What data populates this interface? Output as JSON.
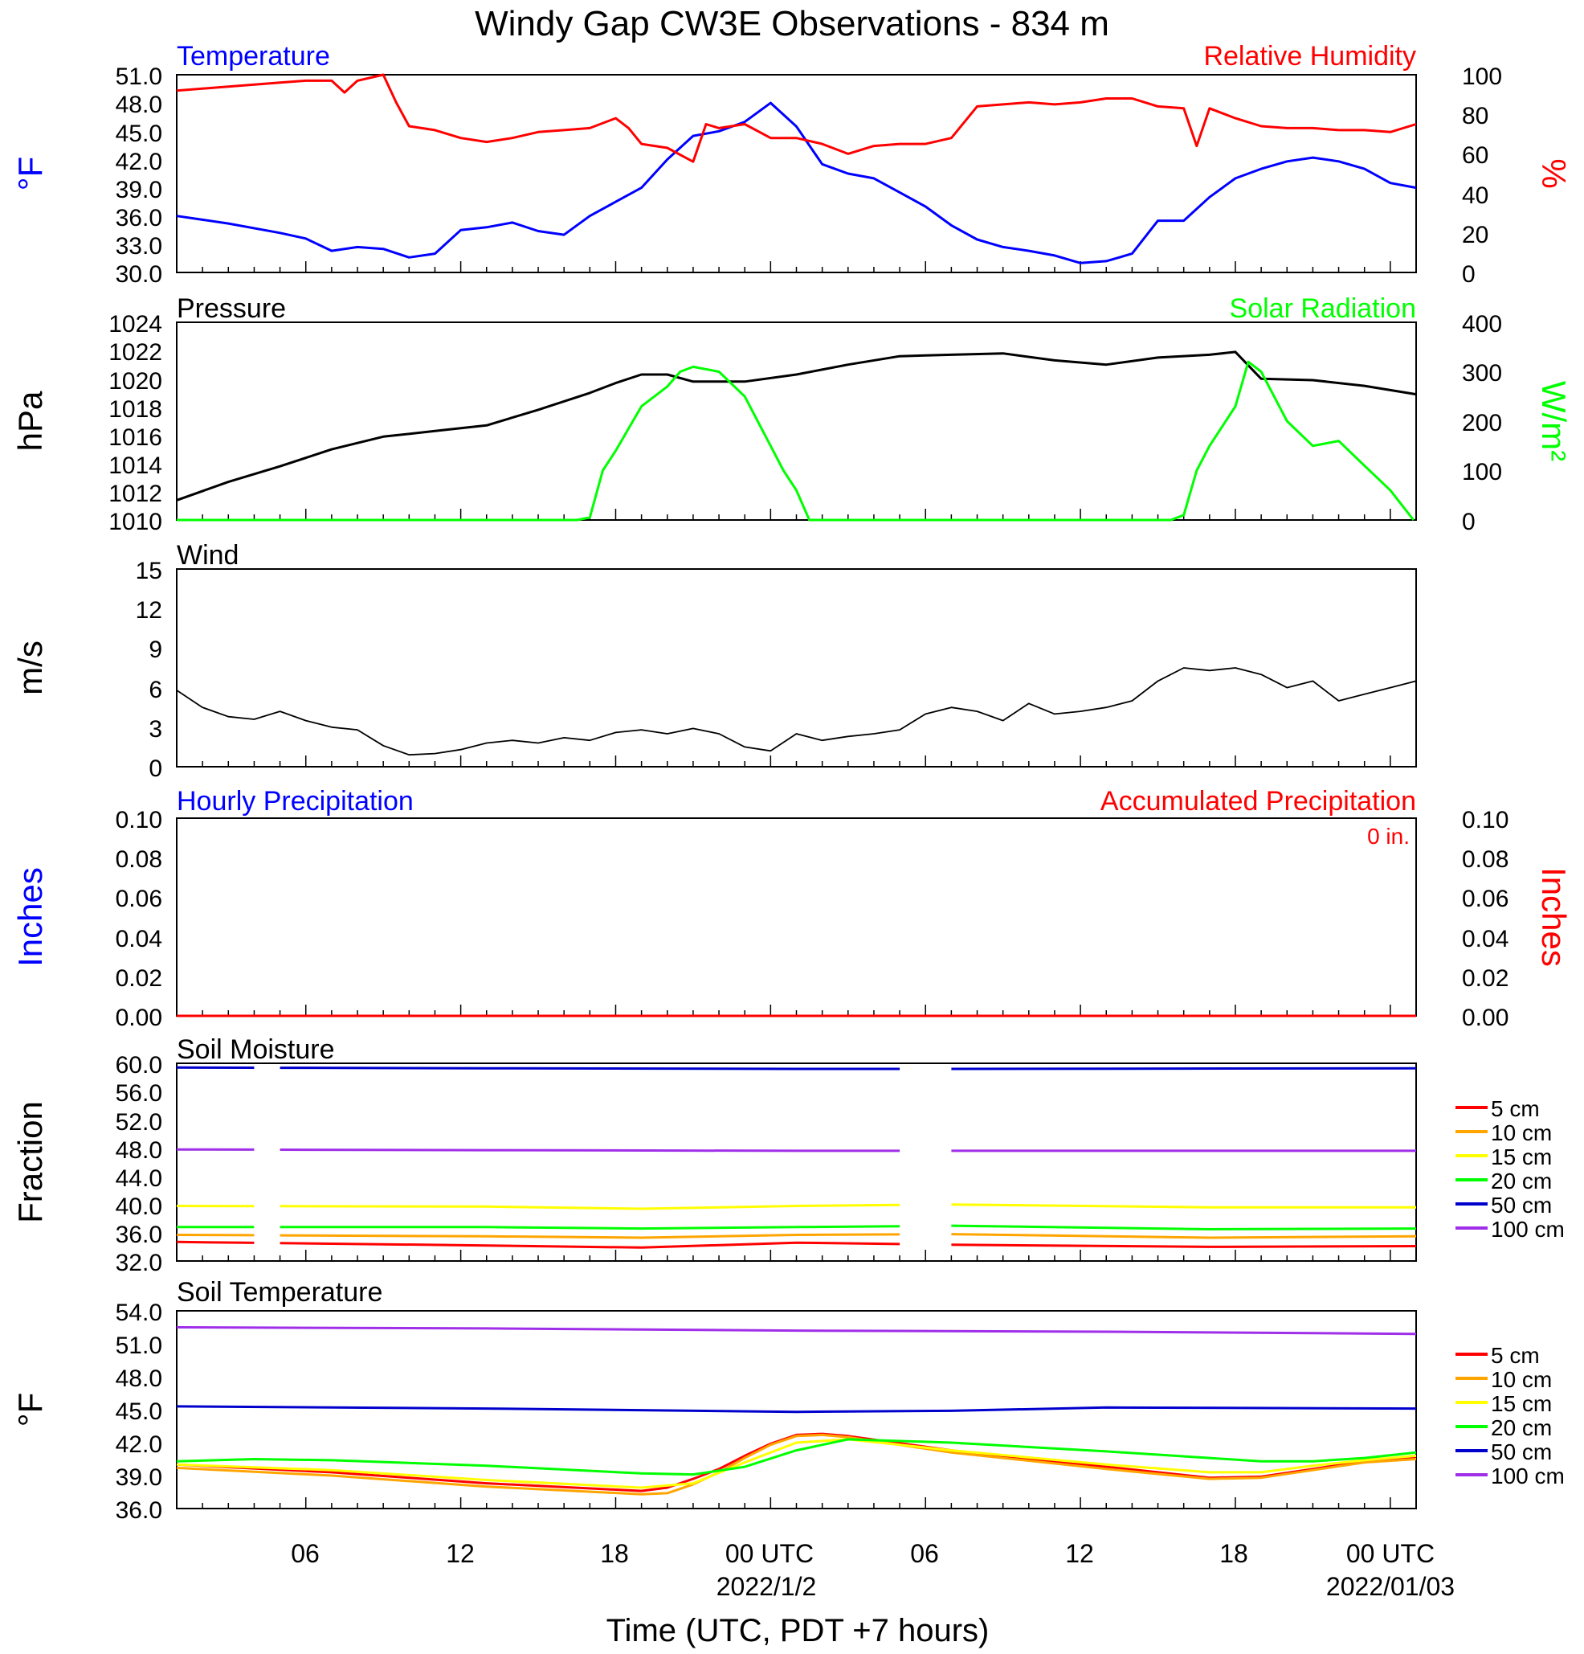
{
  "title": "Windy Gap CW3E Observations - 834 m",
  "x_axis": {
    "label": "Time (UTC, PDT +7 hours)",
    "tick_labels": [
      "06",
      "12",
      "18",
      "00 UTC",
      "06",
      "12",
      "18",
      "00 UTC"
    ],
    "date_labels": [
      "2022/1/2",
      "2022/01/03"
    ]
  },
  "colors": {
    "blue": "#0000ff",
    "red": "#ff0000",
    "green": "#00ff00",
    "black": "#000000",
    "orange": "#ffa500",
    "yellow": "#ffff00",
    "navy": "#0000cd",
    "purple": "#9f2fe8"
  },
  "panels": {
    "temp_rh": {
      "left_title": "Temperature",
      "right_title": "Relative Humidity",
      "left_unit": "°F",
      "right_unit": "%",
      "left_ticks": [
        "30.0",
        "33.0",
        "36.0",
        "39.0",
        "42.0",
        "45.0",
        "48.0",
        "51.0"
      ],
      "right_ticks": [
        "0",
        "20",
        "40",
        "60",
        "80",
        "100"
      ]
    },
    "pressure_solar": {
      "left_title": "Pressure",
      "right_title": "Solar Radiation",
      "left_unit": "hPa",
      "right_unit": "W/m²",
      "left_ticks": [
        "1010",
        "1012",
        "1014",
        "1016",
        "1018",
        "1020",
        "1022",
        "1024"
      ],
      "right_ticks": [
        "0",
        "100",
        "200",
        "300",
        "400"
      ]
    },
    "wind": {
      "left_title": "Wind",
      "left_unit": "m/s",
      "left_ticks": [
        "0",
        "3",
        "6",
        "9",
        "12",
        "15"
      ]
    },
    "precip": {
      "left_title": "Hourly Precipitation",
      "right_title": "Accumulated Precipitation",
      "left_unit": "Inches",
      "right_unit": "Inches",
      "annotation": "0 in.",
      "left_ticks": [
        "0.00",
        "0.02",
        "0.04",
        "0.06",
        "0.08",
        "0.10"
      ],
      "right_ticks": [
        "0.00",
        "0.02",
        "0.04",
        "0.06",
        "0.08",
        "0.10"
      ]
    },
    "soil_moisture": {
      "left_title": "Soil Moisture",
      "left_unit": "Fraction",
      "left_ticks": [
        "32.0",
        "36.0",
        "40.0",
        "44.0",
        "48.0",
        "52.0",
        "56.0",
        "60.0"
      ],
      "legend": [
        "5 cm",
        "10 cm",
        "15 cm",
        "20 cm",
        "50 cm",
        "100 cm"
      ]
    },
    "soil_temp": {
      "left_title": "Soil Temperature",
      "left_unit": "°F",
      "left_ticks": [
        "36.0",
        "39.0",
        "42.0",
        "45.0",
        "48.0",
        "51.0",
        "54.0"
      ],
      "legend": [
        "5 cm",
        "10 cm",
        "15 cm",
        "20 cm",
        "50 cm",
        "100 cm"
      ]
    }
  },
  "chart_data": [
    {
      "type": "line",
      "title": "Temperature / Relative Humidity",
      "x_unit": "hours since 2022-01-01 01 UTC",
      "series": [
        {
          "name": "Temperature",
          "axis": "left",
          "color": "#0000ff",
          "x": [
            0,
            2,
            4,
            5,
            6,
            7,
            8,
            9,
            10,
            11,
            12,
            13,
            14,
            15,
            16,
            17,
            18,
            19,
            20,
            21,
            22,
            23,
            24,
            25,
            26,
            27,
            28,
            29,
            30,
            31,
            32,
            33,
            34,
            35,
            36,
            37,
            38,
            39,
            40,
            41,
            42,
            43,
            44,
            45,
            46,
            47,
            48
          ],
          "y": [
            36,
            35.2,
            34.2,
            33.6,
            32.3,
            32.7,
            32.5,
            31.6,
            32.0,
            34.5,
            34.8,
            35.3,
            34.4,
            34.0,
            36.0,
            37.5,
            39.0,
            42.0,
            44.5,
            45.0,
            46.0,
            48.0,
            45.5,
            41.5,
            40.5,
            40.0,
            38.5,
            37.0,
            35.0,
            33.5,
            32.7,
            32.3,
            31.8,
            31.0,
            31.2,
            32.0,
            35.5,
            35.5,
            38.0,
            40.0,
            41.0,
            41.8,
            42.2,
            41.8,
            41.0,
            39.5,
            39.0
          ]
        },
        {
          "name": "Relative Humidity",
          "axis": "right",
          "color": "#ff0000",
          "x": [
            0,
            2,
            4,
            5,
            6,
            6.5,
            7,
            8,
            8.5,
            9,
            10,
            11,
            12,
            13,
            14,
            15,
            16,
            17,
            17.5,
            18,
            19,
            20,
            20.5,
            21,
            22,
            23,
            24,
            25,
            26,
            27,
            28,
            29,
            30,
            31,
            32,
            33,
            34,
            35,
            36,
            37,
            38,
            39,
            39.5,
            40,
            41,
            42,
            43,
            44,
            45,
            46,
            47,
            48
          ],
          "y": [
            92,
            94,
            96,
            97,
            97,
            91,
            97,
            100,
            86,
            74,
            72,
            68,
            66,
            68,
            71,
            72,
            73,
            78,
            73,
            65,
            63,
            56,
            75,
            73,
            75,
            68,
            68,
            65,
            60,
            64,
            65,
            65,
            68,
            84,
            85,
            86,
            85,
            86,
            88,
            88,
            84,
            83,
            64,
            83,
            78,
            74,
            73,
            73,
            72,
            72,
            71,
            75
          ]
        }
      ]
    },
    {
      "type": "line",
      "title": "Pressure / Solar Radiation",
      "series": [
        {
          "name": "Pressure",
          "axis": "left",
          "color": "#000000",
          "x": [
            0,
            2,
            4,
            6,
            8,
            10,
            12,
            14,
            16,
            17,
            18,
            19,
            20,
            22,
            24,
            26,
            28,
            30,
            32,
            34,
            36,
            38,
            40,
            41,
            42,
            44,
            46,
            48
          ],
          "y": [
            1011.4,
            1012.7,
            1013.8,
            1015.0,
            1015.9,
            1016.3,
            1016.7,
            1017.8,
            1019.0,
            1019.7,
            1020.3,
            1020.3,
            1019.8,
            1019.8,
            1020.3,
            1021.0,
            1021.6,
            1021.7,
            1021.8,
            1021.3,
            1021.0,
            1021.5,
            1021.7,
            1021.9,
            1020.0,
            1019.9,
            1019.5,
            1018.9
          ]
        },
        {
          "name": "Solar Radiation",
          "axis": "right",
          "color": "#00ff00",
          "x": [
            0,
            15.5,
            16,
            16.5,
            17,
            18,
            19,
            19.5,
            20,
            21,
            22,
            23,
            23.5,
            24,
            24.5,
            25,
            30,
            35,
            38.5,
            39,
            39.5,
            40,
            41,
            41.5,
            42,
            43,
            44,
            45,
            46,
            47,
            47.9
          ],
          "y": [
            0,
            0,
            5,
            100,
            140,
            230,
            270,
            300,
            310,
            300,
            250,
            150,
            100,
            60,
            0,
            0,
            0,
            0,
            0,
            10,
            100,
            150,
            230,
            320,
            300,
            200,
            150,
            160,
            110,
            60,
            0
          ]
        }
      ]
    },
    {
      "type": "line",
      "title": "Wind",
      "series": [
        {
          "name": "Wind speed",
          "color": "#000000",
          "x": [
            0,
            1,
            2,
            3,
            4,
            5,
            6,
            7,
            8,
            9,
            10,
            11,
            12,
            13,
            14,
            15,
            16,
            17,
            18,
            19,
            20,
            21,
            22,
            23,
            24,
            25,
            26,
            27,
            28,
            29,
            30,
            31,
            32,
            33,
            34,
            35,
            36,
            37,
            38,
            39,
            40,
            41,
            42,
            43,
            44,
            45,
            46,
            47,
            48
          ],
          "y": [
            5.8,
            4.5,
            3.8,
            3.6,
            4.2,
            3.5,
            3.0,
            2.8,
            1.6,
            0.9,
            1.0,
            1.3,
            1.8,
            2.0,
            1.8,
            2.2,
            2.0,
            2.6,
            2.8,
            2.5,
            2.9,
            2.5,
            1.5,
            1.2,
            2.5,
            2.0,
            2.3,
            2.5,
            2.8,
            4.0,
            4.5,
            4.2,
            3.5,
            4.8,
            4.0,
            4.2,
            4.5,
            5.0,
            6.5,
            7.5,
            7.3,
            7.5,
            7.0,
            6.0,
            6.5,
            5.0,
            5.5,
            6.0,
            6.5
          ]
        }
      ]
    },
    {
      "type": "line",
      "title": "Precipitation",
      "series": [
        {
          "name": "Hourly Precipitation",
          "axis": "left",
          "color": "#0000ff",
          "x": [
            0,
            48
          ],
          "y": [
            0,
            0
          ]
        },
        {
          "name": "Accumulated Precipitation",
          "axis": "right",
          "color": "#ff0000",
          "x": [
            0,
            48
          ],
          "y": [
            0,
            0
          ]
        }
      ]
    },
    {
      "type": "line",
      "title": "Soil Moisture",
      "gaps_hours": [
        [
          3,
          4
        ],
        [
          28,
          30
        ]
      ],
      "series": [
        {
          "name": "5 cm",
          "color": "#ff0000",
          "x": [
            0,
            12,
            18,
            24,
            30,
            40,
            48
          ],
          "y": [
            34.7,
            34.2,
            33.9,
            34.6,
            34.3,
            34.0,
            34.1
          ]
        },
        {
          "name": "10 cm",
          "color": "#ffa500",
          "x": [
            0,
            12,
            18,
            24,
            30,
            40,
            48
          ],
          "y": [
            35.7,
            35.5,
            35.3,
            35.7,
            35.8,
            35.3,
            35.5
          ]
        },
        {
          "name": "15 cm",
          "color": "#ffff00",
          "x": [
            0,
            12,
            18,
            24,
            30,
            40,
            48
          ],
          "y": [
            39.8,
            39.7,
            39.4,
            39.8,
            40.0,
            39.6,
            39.6
          ]
        },
        {
          "name": "20 cm",
          "color": "#00ff00",
          "x": [
            0,
            12,
            18,
            24,
            30,
            40,
            48
          ],
          "y": [
            36.8,
            36.8,
            36.6,
            36.8,
            37.0,
            36.5,
            36.6
          ]
        },
        {
          "name": "50 cm",
          "color": "#0000cd",
          "x": [
            0,
            12,
            24,
            30,
            48
          ],
          "y": [
            59.4,
            59.3,
            59.2,
            59.2,
            59.3
          ]
        },
        {
          "name": "100 cm",
          "color": "#9f2fe8",
          "x": [
            0,
            12,
            24,
            30,
            48
          ],
          "y": [
            47.8,
            47.7,
            47.6,
            47.6,
            47.6
          ]
        }
      ]
    },
    {
      "type": "line",
      "title": "Soil Temperature",
      "series": [
        {
          "name": "5 cm",
          "color": "#ff0000",
          "x": [
            0,
            6,
            12,
            18,
            19,
            20,
            21,
            22,
            23,
            24,
            25,
            26,
            30,
            36,
            40,
            42,
            44,
            46,
            48
          ],
          "y": [
            40.0,
            39.3,
            38.3,
            37.6,
            37.9,
            38.7,
            39.6,
            40.8,
            41.9,
            42.7,
            42.8,
            42.6,
            41.3,
            39.8,
            38.8,
            38.9,
            39.6,
            40.3,
            40.6
          ]
        },
        {
          "name": "10 cm",
          "color": "#ffa500",
          "x": [
            0,
            6,
            12,
            18,
            19,
            20,
            21,
            22,
            23,
            24,
            25,
            26,
            30,
            36,
            40,
            42,
            44,
            46,
            48
          ],
          "y": [
            39.7,
            39.0,
            38.0,
            37.3,
            37.4,
            38.2,
            39.3,
            40.6,
            41.8,
            42.6,
            42.7,
            42.5,
            41.1,
            39.6,
            38.7,
            38.8,
            39.5,
            40.2,
            40.5
          ]
        },
        {
          "name": "15 cm",
          "color": "#ffff00",
          "x": [
            0,
            6,
            12,
            18,
            20,
            22,
            24,
            26,
            30,
            36,
            40,
            42,
            44,
            46,
            48
          ],
          "y": [
            40.0,
            39.5,
            38.6,
            37.9,
            38.3,
            40.2,
            42.0,
            42.3,
            41.3,
            40.0,
            39.3,
            39.3,
            39.9,
            40.4,
            40.8
          ]
        },
        {
          "name": "20 cm",
          "color": "#00ff00",
          "x": [
            0,
            3,
            6,
            12,
            18,
            20,
            22,
            24,
            26,
            30,
            36,
            40,
            42,
            44,
            46,
            48
          ],
          "y": [
            40.3,
            40.5,
            40.4,
            39.9,
            39.2,
            39.1,
            39.8,
            41.3,
            42.3,
            42.0,
            41.2,
            40.6,
            40.3,
            40.3,
            40.6,
            41.1
          ]
        },
        {
          "name": "50 cm",
          "color": "#0000cd",
          "x": [
            0,
            12,
            24,
            30,
            36,
            48
          ],
          "y": [
            45.3,
            45.1,
            44.8,
            44.9,
            45.2,
            45.1
          ]
        },
        {
          "name": "100 cm",
          "color": "#9f2fe8",
          "x": [
            0,
            12,
            24,
            36,
            48
          ],
          "y": [
            52.5,
            52.4,
            52.2,
            52.1,
            51.9
          ]
        }
      ]
    }
  ]
}
